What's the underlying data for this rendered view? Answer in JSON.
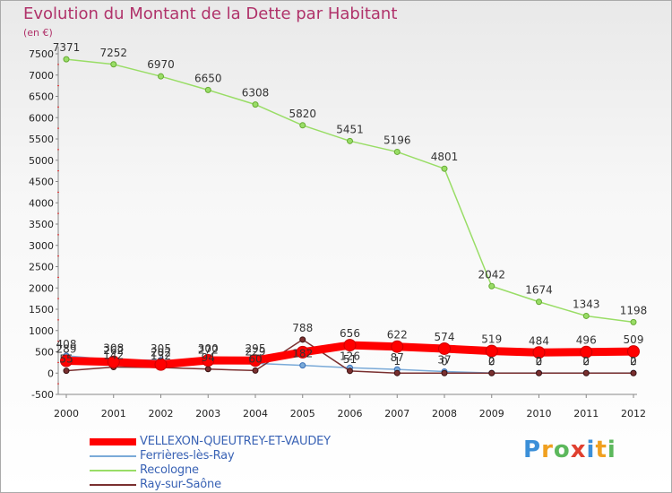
{
  "header": {
    "title": "Evolution du Montant de la Dette par Habitant",
    "subtitle": "(en €)"
  },
  "chart_data": {
    "type": "line",
    "title": "Evolution du Montant de la Dette par Habitant",
    "ylabel": "(en €)",
    "xlabel": "",
    "ylim": [
      -500,
      7500
    ],
    "yticks": [
      -500,
      0,
      500,
      1000,
      1500,
      2000,
      2500,
      3000,
      3500,
      4000,
      4500,
      5000,
      5500,
      6000,
      6500,
      7000,
      7500
    ],
    "x": [
      "2000",
      "2001",
      "2002",
      "2003",
      "2004",
      "2005",
      "2006",
      "2007",
      "2008",
      "2009",
      "2010",
      "2011",
      "2012"
    ],
    "grid": false,
    "legend_position": "bottom-left",
    "series": [
      {
        "name": "VELLEXON-QUEUTREY-ET-VAUDEY",
        "color": "#ff0000",
        "values": [
          289,
          262,
          202,
          300,
          295,
          492,
          656,
          622,
          574,
          519,
          484,
          496,
          509
        ],
        "labels": [
          "289",
          "262",
          "202",
          "300",
          "295",
          "",
          "656",
          "622",
          "574",
          "519",
          "484",
          "496",
          "509"
        ]
      },
      {
        "name": "Ferrières-lès-Ray",
        "color": "#7aaad8",
        "values": [
          408,
          308,
          305,
          272,
          229,
          182,
          126,
          87,
          37,
          2,
          2,
          2,
          2
        ],
        "labels": [
          "408",
          "308",
          "305",
          "272",
          "229",
          "182",
          "126",
          "87",
          "37",
          "2",
          "2",
          "2",
          "2"
        ]
      },
      {
        "name": "Recologne",
        "color": "#99dd66",
        "values": [
          7371,
          7252,
          6970,
          6650,
          6308,
          5820,
          5451,
          5196,
          4801,
          2042,
          1674,
          1343,
          1198
        ],
        "labels": [
          "7371",
          "7252",
          "6970",
          "6650",
          "6308",
          "5820",
          "5451",
          "5196",
          "4801",
          "2042",
          "1674",
          "1343",
          "1198"
        ]
      },
      {
        "name": "Ray-sur-Saône",
        "color": "#7a3030",
        "values": [
          55,
          142,
          132,
          94,
          60,
          788,
          51,
          1,
          0,
          0,
          0,
          0,
          0
        ],
        "labels": [
          "55",
          "142",
          "132",
          "94",
          "60",
          "788",
          "51",
          "1",
          "0",
          "0",
          "0",
          "0",
          "0"
        ]
      }
    ]
  },
  "legend": {
    "items": [
      {
        "label": "VELLEXON-QUEUTREY-ET-VAUDEY",
        "color": "#ff0000"
      },
      {
        "label": "Ferrières-lès-Ray",
        "color": "#7aaad8"
      },
      {
        "label": "Recologne",
        "color": "#99dd66"
      },
      {
        "label": "Ray-sur-Saône",
        "color": "#7a3030"
      }
    ]
  },
  "logo": {
    "text": "Proxiti"
  }
}
